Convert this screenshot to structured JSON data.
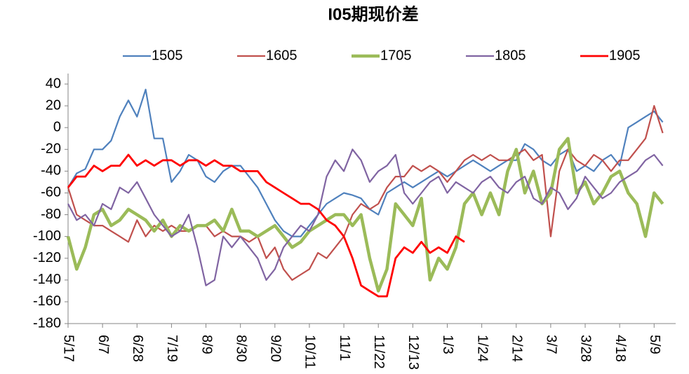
{
  "chart_data": {
    "type": "line",
    "title": "I05期现价差",
    "categories": [
      "5/17",
      null,
      null,
      null,
      "6/7",
      null,
      null,
      null,
      "6/28",
      null,
      null,
      null,
      "7/19",
      null,
      null,
      null,
      "8/9",
      null,
      null,
      null,
      "8/30",
      null,
      null,
      null,
      "9/20",
      null,
      null,
      null,
      "10/11",
      null,
      null,
      null,
      "11/1",
      null,
      null,
      null,
      "11/22",
      null,
      null,
      null,
      "12/13",
      null,
      null,
      null,
      "1/3",
      null,
      null,
      null,
      "1/24",
      null,
      null,
      null,
      "2/14",
      null,
      null,
      null,
      "3/7",
      null,
      null,
      null,
      "3/28",
      null,
      null,
      null,
      "4/18",
      null,
      null,
      null,
      "5/9",
      null
    ],
    "series": [
      {
        "name": "1505",
        "color": "#4f81bd",
        "width": 2.2,
        "values": [
          -55,
          -42,
          -38,
          -20,
          -20,
          -12,
          10,
          25,
          10,
          35,
          -10,
          -10,
          -50,
          -40,
          -25,
          -30,
          -45,
          -50,
          -40,
          -35,
          -35,
          -45,
          -55,
          -70,
          -85,
          -95,
          -100,
          -100,
          -90,
          -80,
          -70,
          -65,
          -60,
          -62,
          -65,
          -75,
          -80,
          -60,
          -55,
          -50,
          -55,
          -50,
          -45,
          -40,
          -45,
          -40,
          -35,
          -30,
          -35,
          -40,
          -35,
          -30,
          -30,
          -15,
          -20,
          -30,
          -35,
          -25,
          -20,
          -40,
          -35,
          -40,
          -30,
          -25,
          -35,
          0,
          5,
          10,
          15,
          5
        ]
      },
      {
        "name": "1605",
        "color": "#c0504d",
        "width": 2.2,
        "values": [
          -55,
          -80,
          -85,
          -90,
          -90,
          -95,
          -100,
          -105,
          -85,
          -100,
          -90,
          -95,
          -90,
          -95,
          -95,
          -90,
          -90,
          -100,
          -95,
          -100,
          -100,
          -105,
          -100,
          -120,
          -110,
          -130,
          -140,
          -135,
          -130,
          -115,
          -120,
          -110,
          -100,
          -80,
          -70,
          -75,
          -70,
          -55,
          -45,
          -45,
          -35,
          -40,
          -35,
          -40,
          -50,
          -40,
          -30,
          -25,
          -30,
          -25,
          -30,
          -30,
          -25,
          -20,
          -30,
          -25,
          -100,
          -40,
          -20,
          -30,
          -35,
          -25,
          -30,
          -40,
          -30,
          -30,
          -20,
          -10,
          20,
          -5
        ]
      },
      {
        "name": "1705",
        "color": "#9bbb59",
        "width": 4.5,
        "values": [
          -100,
          -130,
          -110,
          -80,
          -75,
          -90,
          -85,
          -75,
          -80,
          -85,
          -95,
          -85,
          -100,
          -90,
          -95,
          -90,
          -90,
          -85,
          -95,
          -75,
          -95,
          -95,
          -100,
          -95,
          -90,
          -100,
          -110,
          -105,
          -95,
          -90,
          -85,
          -80,
          -80,
          -90,
          -80,
          -120,
          -150,
          -130,
          -70,
          -80,
          -90,
          -65,
          -140,
          -120,
          -130,
          -110,
          -70,
          -60,
          -80,
          -60,
          -80,
          -40,
          -20,
          -60,
          -40,
          -70,
          -60,
          -20,
          -10,
          -60,
          -50,
          -70,
          -60,
          -45,
          -40,
          -60,
          -70,
          -100,
          -60,
          -70
        ]
      },
      {
        "name": "1805",
        "color": "#8064a2",
        "width": 2.2,
        "values": [
          -70,
          -85,
          -80,
          -90,
          -70,
          -75,
          -55,
          -60,
          -50,
          -65,
          -80,
          -90,
          -100,
          -95,
          -80,
          -110,
          -145,
          -140,
          -100,
          -110,
          -100,
          -110,
          -120,
          -140,
          -130,
          -110,
          -100,
          -90,
          -95,
          -80,
          -45,
          -30,
          -40,
          -20,
          -30,
          -50,
          -40,
          -35,
          -25,
          -60,
          -70,
          -60,
          -50,
          -45,
          -60,
          -50,
          -55,
          -60,
          -50,
          -45,
          -55,
          -60,
          -50,
          -45,
          -65,
          -70,
          -55,
          -60,
          -75,
          -65,
          -45,
          -55,
          -65,
          -60,
          -50,
          -45,
          -40,
          -30,
          -25,
          -35
        ]
      },
      {
        "name": "1905",
        "color": "#ff0000",
        "width": 2.8,
        "values": [
          -55,
          -45,
          -45,
          -35,
          -40,
          -35,
          -35,
          -25,
          -35,
          -30,
          -35,
          -30,
          -30,
          -35,
          -30,
          -30,
          -35,
          -30,
          -35,
          -35,
          -40,
          -40,
          -40,
          -50,
          -55,
          -60,
          -65,
          -70,
          -70,
          -75,
          -85,
          -90,
          -100,
          -120,
          -145,
          -150,
          -155,
          -155,
          -120,
          -110,
          -115,
          -105,
          -115,
          -110,
          -115,
          -100,
          -105,
          null,
          null,
          null,
          null,
          null,
          null,
          null,
          null,
          null,
          null,
          null,
          null,
          null,
          null,
          null,
          null,
          null,
          null,
          null,
          null,
          null,
          null,
          null
        ]
      }
    ],
    "ylim": [
      -180,
      40
    ],
    "yticks": [
      -180,
      -160,
      -140,
      -120,
      -100,
      -80,
      -60,
      -40,
      -20,
      0,
      20,
      40
    ],
    "grid": false
  }
}
